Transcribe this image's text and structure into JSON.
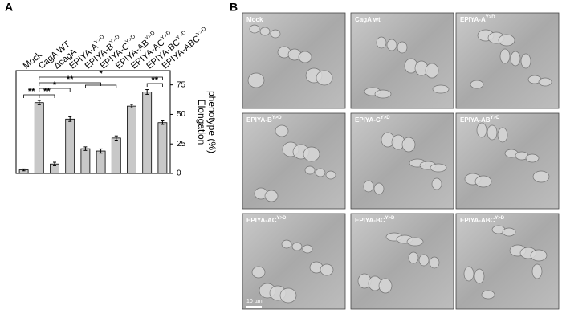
{
  "panel_labels": [
    "A",
    "B"
  ],
  "chart_data": {
    "type": "bar",
    "categories": [
      {
        "base": "Mock"
      },
      {
        "base": "CagA WT"
      },
      {
        "base": "ΔcagA"
      },
      {
        "base": "EPIYA-A",
        "sup": "Y>D"
      },
      {
        "base": "EPIYA-B",
        "sup": "Y>D"
      },
      {
        "base": "EPIYA-C",
        "sup": "Y>D"
      },
      {
        "base": "EPIYA-AB",
        "sup": "Y>D"
      },
      {
        "base": "EPIYA-AC",
        "sup": "Y>D"
      },
      {
        "base": "EPIYA-BC",
        "sup": "Y>D"
      },
      {
        "base": "EPIYA-ABC",
        "sup": "Y>D"
      }
    ],
    "values": [
      3,
      60,
      8,
      46,
      21,
      19,
      30,
      57,
      69,
      43
    ],
    "errors": [
      0.8,
      1.8,
      1.5,
      2,
      1.5,
      1.8,
      1.8,
      1.5,
      2,
      1.5
    ],
    "color": "#c8c8c8",
    "ylim": [
      0,
      87
    ],
    "yticks": [
      0,
      25,
      50,
      75
    ],
    "ylabel_lines": [
      "Elongation",
      "phenotype (%)"
    ],
    "annotations": [
      "*",
      "**",
      "**",
      "**",
      "*",
      "**"
    ]
  },
  "micrographs": {
    "panels": [
      {
        "base": "Mock"
      },
      {
        "base": "CagA wt"
      },
      {
        "base": "EPIYA-A",
        "sup": "Y>D"
      },
      {
        "base": "EPIYA-B",
        "sup": "Y>D"
      },
      {
        "base": "EPIYA-C",
        "sup": "Y>D"
      },
      {
        "base": "EPIYA-AB",
        "sup": "Y>D"
      },
      {
        "base": "EPIYA-AC",
        "sup": "Y>D"
      },
      {
        "base": "EPIYA-BC",
        "sup": "Y>D"
      },
      {
        "base": "EPIYA-ABC",
        "sup": "Y>D"
      }
    ],
    "scale_bar": "10 µm"
  }
}
